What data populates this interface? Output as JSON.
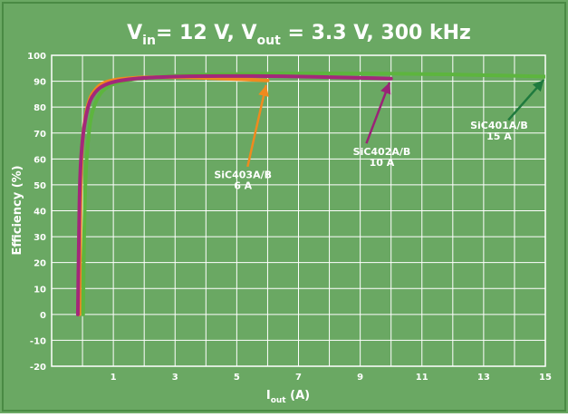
{
  "chart_data": {
    "type": "line",
    "title": {
      "v_main": "V",
      "v_sub": "in",
      "mid": "= 12  V,  V",
      "out_sub": "out",
      "tail": " = 3.3 V, 300 kHz"
    },
    "xlabel": {
      "main": "I",
      "sub": "out",
      "tail": " (A)"
    },
    "ylabel": "Efficiency (%)",
    "xlim": [
      -1,
      15
    ],
    "ylim": [
      -20,
      100
    ],
    "x_ticks": [
      1,
      3,
      5,
      7,
      9,
      11,
      13,
      15
    ],
    "y_ticks": [
      100,
      90,
      80,
      70,
      60,
      50,
      40,
      30,
      20,
      10,
      0,
      -10,
      -20
    ],
    "grid": true,
    "colors": {
      "background": "#6aa863",
      "grid": "#ffffff",
      "title": "#ffffff"
    },
    "series": [
      {
        "color": "#5db53e",
        "x": [
          0.02,
          0.05,
          0.1,
          0.2,
          0.3,
          0.5,
          0.7,
          1.0,
          1.5,
          2.0,
          3.0,
          4.0,
          5.0,
          7.0,
          9.0,
          11.0,
          13.0,
          15.0
        ],
        "y": [
          0,
          30,
          55,
          70,
          78,
          84,
          87,
          89,
          90.5,
          91.2,
          92.2,
          92.6,
          92.8,
          93.0,
          93.0,
          92.8,
          92.4,
          91.8
        ]
      },
      {
        "color": "#f08a1e",
        "x": [
          -0.1,
          -0.08,
          -0.05,
          0.0,
          0.1,
          0.2,
          0.3,
          0.5,
          0.7,
          1.0,
          1.5,
          2.0,
          3.0,
          4.0,
          5.0,
          6.0
        ],
        "y": [
          0,
          30,
          55,
          68,
          77,
          82,
          85,
          88,
          89.5,
          90.5,
          91.2,
          91.5,
          91.6,
          91.3,
          90.8,
          90.3
        ]
      },
      {
        "color": "#a3287a",
        "x": [
          -0.15,
          -0.12,
          -0.08,
          0.0,
          0.1,
          0.2,
          0.3,
          0.5,
          0.7,
          1.0,
          1.5,
          2.0,
          3.0,
          4.0,
          5.0,
          6.0,
          7.0,
          8.0,
          9.0,
          10.0
        ],
        "y": [
          0,
          30,
          55,
          68,
          76,
          81,
          84,
          87,
          88.5,
          89.8,
          90.8,
          91.3,
          91.8,
          92.0,
          92.0,
          92.0,
          91.8,
          91.6,
          91.3,
          91.0
        ]
      }
    ],
    "annotations": [
      {
        "lines": [
          "SiC401A/B",
          "15 A"
        ],
        "tx": 13.5,
        "ty": 73,
        "ax": 13.8,
        "ay": 75,
        "hx": 14.95,
        "hy": 90.5,
        "color": "#1f7a3e"
      },
      {
        "lines": [
          "SiC402A/B",
          "10 A"
        ],
        "tx": 9.7,
        "ty": 63,
        "ax": 9.2,
        "ay": 66,
        "hx": 9.95,
        "hy": 89.5,
        "color": "#9a2377"
      },
      {
        "lines": [
          "SiC403A/B",
          "6 A"
        ],
        "tx": 5.2,
        "ty": 54,
        "ax": 5.35,
        "ay": 57,
        "hx": 5.95,
        "hy": 88.5,
        "color": "#f08a1e"
      }
    ]
  }
}
